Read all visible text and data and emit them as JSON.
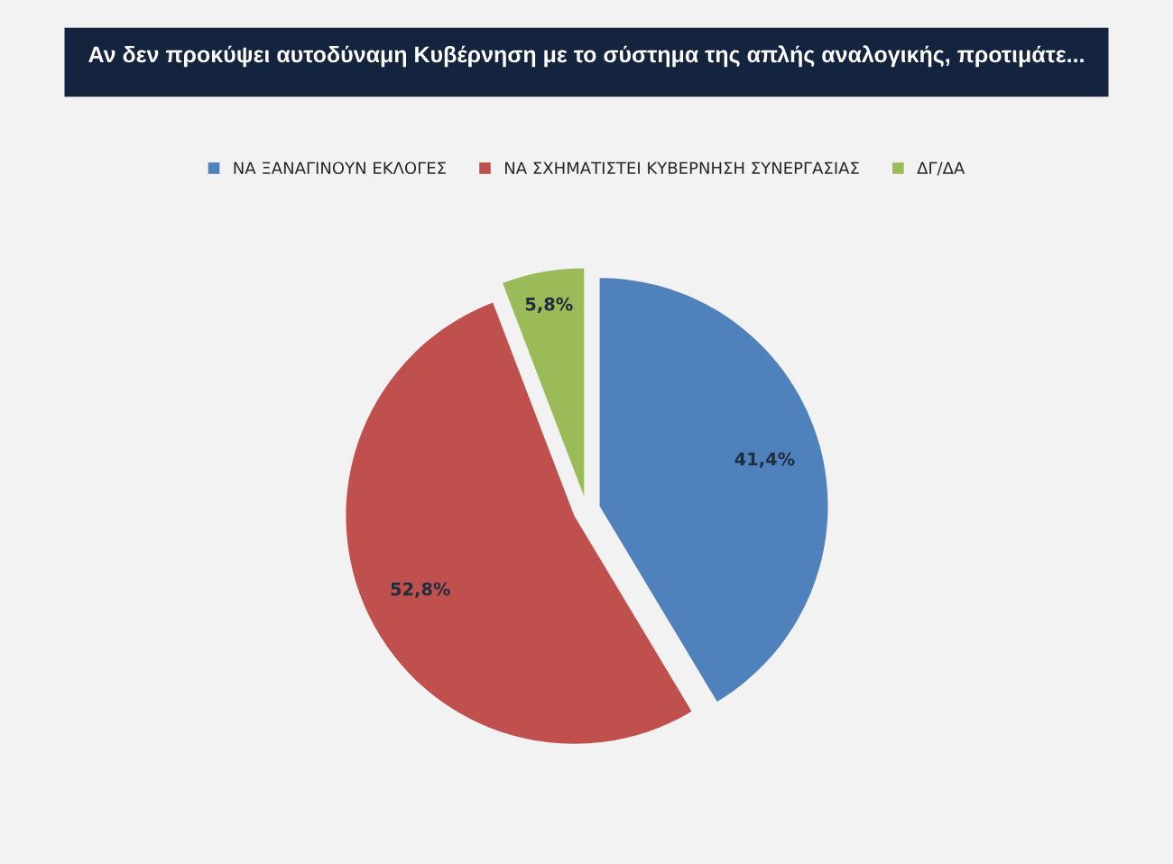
{
  "chart_data": {
    "type": "pie",
    "title": "Αν δεν προκύψει αυτοδύναμη Κυβέρνηση με το σύστημα της απλής αναλογικής, προτιμάτε...",
    "categories": [
      "ΝΑ ΞΑΝΑΓΙΝΟΥΝ ΕΚΛΟΓΕΣ",
      "ΝΑ ΣΧΗΜΑΤΙΣΤΕΙ ΚΥΒΕΡΝΗΣΗ ΣΥΝΕΡΓΑΣΙΑΣ",
      "ΔΓ/ΔΑ"
    ],
    "values": [
      41.4,
      52.8,
      5.8
    ],
    "colors": [
      "#4f81bd",
      "#c0504d",
      "#9bbb59"
    ],
    "value_labels": [
      "41,4%",
      "52,8%",
      "5,8%"
    ],
    "legend": "top"
  }
}
